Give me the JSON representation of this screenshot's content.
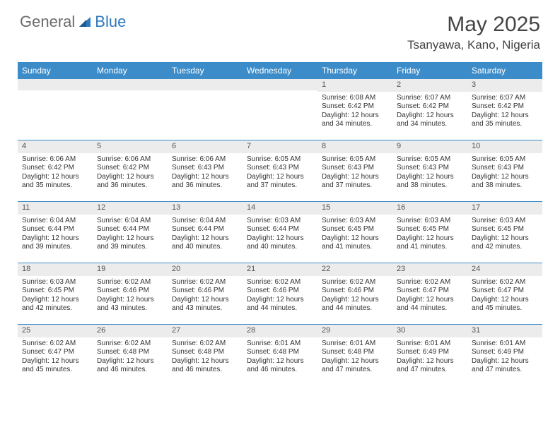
{
  "brand": {
    "text_a": "General",
    "text_b": "Blue"
  },
  "title": {
    "month": "May 2025",
    "location": "Tsanyawa, Kano, Nigeria"
  },
  "colors": {
    "header_bg": "#3c8cc9",
    "header_text": "#ffffff",
    "daynum_bg": "#ececec",
    "divider": "#3c8cc9",
    "text": "#333333",
    "brand_gray": "#6b6b6b",
    "brand_blue": "#2f78bd"
  },
  "day_labels": [
    "Sunday",
    "Monday",
    "Tuesday",
    "Wednesday",
    "Thursday",
    "Friday",
    "Saturday"
  ],
  "weeks": [
    [
      {
        "empty": true
      },
      {
        "empty": true
      },
      {
        "empty": true
      },
      {
        "empty": true
      },
      {
        "day": "1",
        "sunrise": "Sunrise: 6:08 AM",
        "sunset": "Sunset: 6:42 PM",
        "daylight1": "Daylight: 12 hours",
        "daylight2": "and 34 minutes."
      },
      {
        "day": "2",
        "sunrise": "Sunrise: 6:07 AM",
        "sunset": "Sunset: 6:42 PM",
        "daylight1": "Daylight: 12 hours",
        "daylight2": "and 34 minutes."
      },
      {
        "day": "3",
        "sunrise": "Sunrise: 6:07 AM",
        "sunset": "Sunset: 6:42 PM",
        "daylight1": "Daylight: 12 hours",
        "daylight2": "and 35 minutes."
      }
    ],
    [
      {
        "day": "4",
        "sunrise": "Sunrise: 6:06 AM",
        "sunset": "Sunset: 6:42 PM",
        "daylight1": "Daylight: 12 hours",
        "daylight2": "and 35 minutes."
      },
      {
        "day": "5",
        "sunrise": "Sunrise: 6:06 AM",
        "sunset": "Sunset: 6:42 PM",
        "daylight1": "Daylight: 12 hours",
        "daylight2": "and 36 minutes."
      },
      {
        "day": "6",
        "sunrise": "Sunrise: 6:06 AM",
        "sunset": "Sunset: 6:43 PM",
        "daylight1": "Daylight: 12 hours",
        "daylight2": "and 36 minutes."
      },
      {
        "day": "7",
        "sunrise": "Sunrise: 6:05 AM",
        "sunset": "Sunset: 6:43 PM",
        "daylight1": "Daylight: 12 hours",
        "daylight2": "and 37 minutes."
      },
      {
        "day": "8",
        "sunrise": "Sunrise: 6:05 AM",
        "sunset": "Sunset: 6:43 PM",
        "daylight1": "Daylight: 12 hours",
        "daylight2": "and 37 minutes."
      },
      {
        "day": "9",
        "sunrise": "Sunrise: 6:05 AM",
        "sunset": "Sunset: 6:43 PM",
        "daylight1": "Daylight: 12 hours",
        "daylight2": "and 38 minutes."
      },
      {
        "day": "10",
        "sunrise": "Sunrise: 6:05 AM",
        "sunset": "Sunset: 6:43 PM",
        "daylight1": "Daylight: 12 hours",
        "daylight2": "and 38 minutes."
      }
    ],
    [
      {
        "day": "11",
        "sunrise": "Sunrise: 6:04 AM",
        "sunset": "Sunset: 6:44 PM",
        "daylight1": "Daylight: 12 hours",
        "daylight2": "and 39 minutes."
      },
      {
        "day": "12",
        "sunrise": "Sunrise: 6:04 AM",
        "sunset": "Sunset: 6:44 PM",
        "daylight1": "Daylight: 12 hours",
        "daylight2": "and 39 minutes."
      },
      {
        "day": "13",
        "sunrise": "Sunrise: 6:04 AM",
        "sunset": "Sunset: 6:44 PM",
        "daylight1": "Daylight: 12 hours",
        "daylight2": "and 40 minutes."
      },
      {
        "day": "14",
        "sunrise": "Sunrise: 6:03 AM",
        "sunset": "Sunset: 6:44 PM",
        "daylight1": "Daylight: 12 hours",
        "daylight2": "and 40 minutes."
      },
      {
        "day": "15",
        "sunrise": "Sunrise: 6:03 AM",
        "sunset": "Sunset: 6:45 PM",
        "daylight1": "Daylight: 12 hours",
        "daylight2": "and 41 minutes."
      },
      {
        "day": "16",
        "sunrise": "Sunrise: 6:03 AM",
        "sunset": "Sunset: 6:45 PM",
        "daylight1": "Daylight: 12 hours",
        "daylight2": "and 41 minutes."
      },
      {
        "day": "17",
        "sunrise": "Sunrise: 6:03 AM",
        "sunset": "Sunset: 6:45 PM",
        "daylight1": "Daylight: 12 hours",
        "daylight2": "and 42 minutes."
      }
    ],
    [
      {
        "day": "18",
        "sunrise": "Sunrise: 6:03 AM",
        "sunset": "Sunset: 6:45 PM",
        "daylight1": "Daylight: 12 hours",
        "daylight2": "and 42 minutes."
      },
      {
        "day": "19",
        "sunrise": "Sunrise: 6:02 AM",
        "sunset": "Sunset: 6:46 PM",
        "daylight1": "Daylight: 12 hours",
        "daylight2": "and 43 minutes."
      },
      {
        "day": "20",
        "sunrise": "Sunrise: 6:02 AM",
        "sunset": "Sunset: 6:46 PM",
        "daylight1": "Daylight: 12 hours",
        "daylight2": "and 43 minutes."
      },
      {
        "day": "21",
        "sunrise": "Sunrise: 6:02 AM",
        "sunset": "Sunset: 6:46 PM",
        "daylight1": "Daylight: 12 hours",
        "daylight2": "and 44 minutes."
      },
      {
        "day": "22",
        "sunrise": "Sunrise: 6:02 AM",
        "sunset": "Sunset: 6:46 PM",
        "daylight1": "Daylight: 12 hours",
        "daylight2": "and 44 minutes."
      },
      {
        "day": "23",
        "sunrise": "Sunrise: 6:02 AM",
        "sunset": "Sunset: 6:47 PM",
        "daylight1": "Daylight: 12 hours",
        "daylight2": "and 44 minutes."
      },
      {
        "day": "24",
        "sunrise": "Sunrise: 6:02 AM",
        "sunset": "Sunset: 6:47 PM",
        "daylight1": "Daylight: 12 hours",
        "daylight2": "and 45 minutes."
      }
    ],
    [
      {
        "day": "25",
        "sunrise": "Sunrise: 6:02 AM",
        "sunset": "Sunset: 6:47 PM",
        "daylight1": "Daylight: 12 hours",
        "daylight2": "and 45 minutes."
      },
      {
        "day": "26",
        "sunrise": "Sunrise: 6:02 AM",
        "sunset": "Sunset: 6:48 PM",
        "daylight1": "Daylight: 12 hours",
        "daylight2": "and 46 minutes."
      },
      {
        "day": "27",
        "sunrise": "Sunrise: 6:02 AM",
        "sunset": "Sunset: 6:48 PM",
        "daylight1": "Daylight: 12 hours",
        "daylight2": "and 46 minutes."
      },
      {
        "day": "28",
        "sunrise": "Sunrise: 6:01 AM",
        "sunset": "Sunset: 6:48 PM",
        "daylight1": "Daylight: 12 hours",
        "daylight2": "and 46 minutes."
      },
      {
        "day": "29",
        "sunrise": "Sunrise: 6:01 AM",
        "sunset": "Sunset: 6:48 PM",
        "daylight1": "Daylight: 12 hours",
        "daylight2": "and 47 minutes."
      },
      {
        "day": "30",
        "sunrise": "Sunrise: 6:01 AM",
        "sunset": "Sunset: 6:49 PM",
        "daylight1": "Daylight: 12 hours",
        "daylight2": "and 47 minutes."
      },
      {
        "day": "31",
        "sunrise": "Sunrise: 6:01 AM",
        "sunset": "Sunset: 6:49 PM",
        "daylight1": "Daylight: 12 hours",
        "daylight2": "and 47 minutes."
      }
    ]
  ]
}
